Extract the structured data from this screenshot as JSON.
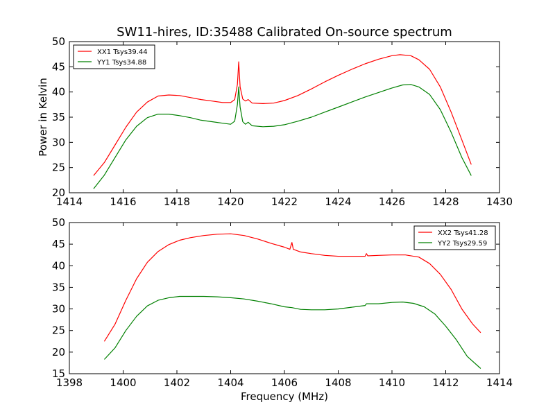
{
  "title": "SW11-hires, ID:35488 Calibrated On-source spectrum",
  "ylabel": "Power in Kelvin",
  "xlabel": "Frequency (MHz)",
  "colors": {
    "red": "#ff0000",
    "green": "#008000",
    "axis": "#000000",
    "background": "#ffffff"
  },
  "chart_data": [
    {
      "type": "line",
      "xlim": [
        1414,
        1430
      ],
      "ylim": [
        20,
        50
      ],
      "xticks": [
        1414,
        1416,
        1418,
        1420,
        1422,
        1424,
        1426,
        1428,
        1430
      ],
      "yticks": [
        20,
        25,
        30,
        35,
        40,
        45,
        50
      ],
      "legend_position": "top-left",
      "series": [
        {
          "name": "XX1 Tsys39.44",
          "color": "#ff0000",
          "points": [
            [
              1414.9,
              23.4
            ],
            [
              1415.3,
              26.0
            ],
            [
              1415.7,
              29.5
            ],
            [
              1416.1,
              33.0
            ],
            [
              1416.5,
              36.0
            ],
            [
              1416.9,
              38.0
            ],
            [
              1417.3,
              39.2
            ],
            [
              1417.7,
              39.4
            ],
            [
              1418.1,
              39.3
            ],
            [
              1418.5,
              38.9
            ],
            [
              1418.9,
              38.5
            ],
            [
              1419.3,
              38.2
            ],
            [
              1419.7,
              37.9
            ],
            [
              1420.0,
              37.9
            ],
            [
              1420.15,
              38.5
            ],
            [
              1420.25,
              41.5
            ],
            [
              1420.3,
              46.0
            ],
            [
              1420.35,
              41.0
            ],
            [
              1420.45,
              38.6
            ],
            [
              1420.55,
              38.2
            ],
            [
              1420.65,
              38.5
            ],
            [
              1420.8,
              37.8
            ],
            [
              1421.2,
              37.7
            ],
            [
              1421.6,
              37.8
            ],
            [
              1422.0,
              38.3
            ],
            [
              1422.5,
              39.3
            ],
            [
              1423.0,
              40.6
            ],
            [
              1423.5,
              42.0
            ],
            [
              1424.0,
              43.3
            ],
            [
              1424.5,
              44.5
            ],
            [
              1425.0,
              45.6
            ],
            [
              1425.5,
              46.5
            ],
            [
              1426.0,
              47.2
            ],
            [
              1426.3,
              47.4
            ],
            [
              1426.7,
              47.2
            ],
            [
              1427.0,
              46.4
            ],
            [
              1427.4,
              44.5
            ],
            [
              1427.8,
              41.0
            ],
            [
              1428.2,
              36.0
            ],
            [
              1428.6,
              30.5
            ],
            [
              1428.95,
              25.6
            ]
          ]
        },
        {
          "name": "YY1 Tsys34.88",
          "color": "#008000",
          "points": [
            [
              1414.9,
              20.8
            ],
            [
              1415.3,
              23.5
            ],
            [
              1415.7,
              27.0
            ],
            [
              1416.1,
              30.5
            ],
            [
              1416.5,
              33.2
            ],
            [
              1416.9,
              34.9
            ],
            [
              1417.3,
              35.6
            ],
            [
              1417.7,
              35.6
            ],
            [
              1418.1,
              35.3
            ],
            [
              1418.5,
              34.9
            ],
            [
              1418.9,
              34.4
            ],
            [
              1419.3,
              34.1
            ],
            [
              1419.7,
              33.8
            ],
            [
              1420.0,
              33.6
            ],
            [
              1420.15,
              34.2
            ],
            [
              1420.25,
              37.5
            ],
            [
              1420.3,
              41.0
            ],
            [
              1420.35,
              37.0
            ],
            [
              1420.45,
              34.1
            ],
            [
              1420.55,
              33.6
            ],
            [
              1420.65,
              34.0
            ],
            [
              1420.8,
              33.3
            ],
            [
              1421.2,
              33.1
            ],
            [
              1421.6,
              33.2
            ],
            [
              1422.0,
              33.5
            ],
            [
              1422.5,
              34.2
            ],
            [
              1423.0,
              35.0
            ],
            [
              1423.5,
              36.0
            ],
            [
              1424.0,
              37.0
            ],
            [
              1424.5,
              38.0
            ],
            [
              1425.0,
              39.0
            ],
            [
              1425.5,
              39.9
            ],
            [
              1426.0,
              40.8
            ],
            [
              1426.4,
              41.4
            ],
            [
              1426.7,
              41.5
            ],
            [
              1427.0,
              41.0
            ],
            [
              1427.4,
              39.5
            ],
            [
              1427.8,
              36.5
            ],
            [
              1428.2,
              32.0
            ],
            [
              1428.6,
              27.0
            ],
            [
              1428.95,
              23.4
            ]
          ]
        }
      ]
    },
    {
      "type": "line",
      "xlim": [
        1398,
        1414
      ],
      "ylim": [
        15,
        50
      ],
      "xticks": [
        1398,
        1400,
        1402,
        1404,
        1406,
        1408,
        1410,
        1412,
        1414
      ],
      "yticks": [
        15,
        20,
        25,
        30,
        35,
        40,
        45,
        50
      ],
      "legend_position": "top-right",
      "series": [
        {
          "name": "XX2 Tsys41.28",
          "color": "#ff0000",
          "points": [
            [
              1399.3,
              22.5
            ],
            [
              1399.7,
              26.5
            ],
            [
              1400.1,
              32.0
            ],
            [
              1400.5,
              37.0
            ],
            [
              1400.9,
              40.8
            ],
            [
              1401.3,
              43.3
            ],
            [
              1401.7,
              44.9
            ],
            [
              1402.1,
              45.9
            ],
            [
              1402.5,
              46.5
            ],
            [
              1403.0,
              47.0
            ],
            [
              1403.5,
              47.3
            ],
            [
              1404.0,
              47.4
            ],
            [
              1404.5,
              47.0
            ],
            [
              1405.0,
              46.2
            ],
            [
              1405.5,
              45.2
            ],
            [
              1406.0,
              44.3
            ],
            [
              1406.2,
              43.8
            ],
            [
              1406.28,
              45.4
            ],
            [
              1406.33,
              43.8
            ],
            [
              1406.6,
              43.2
            ],
            [
              1407.0,
              42.8
            ],
            [
              1407.5,
              42.4
            ],
            [
              1408.0,
              42.2
            ],
            [
              1408.5,
              42.2
            ],
            [
              1409.0,
              42.2
            ],
            [
              1409.05,
              42.8
            ],
            [
              1409.1,
              42.3
            ],
            [
              1409.5,
              42.4
            ],
            [
              1410.0,
              42.5
            ],
            [
              1410.5,
              42.5
            ],
            [
              1411.0,
              42.0
            ],
            [
              1411.4,
              40.5
            ],
            [
              1411.8,
              38.0
            ],
            [
              1412.2,
              34.5
            ],
            [
              1412.6,
              30.0
            ],
            [
              1413.0,
              26.5
            ],
            [
              1413.3,
              24.5
            ]
          ]
        },
        {
          "name": "YY2 Tsys29.59",
          "color": "#008000",
          "points": [
            [
              1399.3,
              18.3
            ],
            [
              1399.7,
              21.0
            ],
            [
              1400.1,
              25.0
            ],
            [
              1400.5,
              28.3
            ],
            [
              1400.9,
              30.7
            ],
            [
              1401.3,
              32.0
            ],
            [
              1401.7,
              32.6
            ],
            [
              1402.1,
              32.9
            ],
            [
              1402.5,
              32.9
            ],
            [
              1403.0,
              32.9
            ],
            [
              1403.5,
              32.8
            ],
            [
              1404.0,
              32.6
            ],
            [
              1404.5,
              32.3
            ],
            [
              1405.0,
              31.8
            ],
            [
              1405.5,
              31.2
            ],
            [
              1406.0,
              30.5
            ],
            [
              1406.28,
              30.3
            ],
            [
              1406.6,
              29.9
            ],
            [
              1407.0,
              29.8
            ],
            [
              1407.5,
              29.8
            ],
            [
              1408.0,
              30.0
            ],
            [
              1408.5,
              30.4
            ],
            [
              1409.0,
              30.8
            ],
            [
              1409.05,
              31.2
            ],
            [
              1409.5,
              31.2
            ],
            [
              1410.0,
              31.5
            ],
            [
              1410.4,
              31.6
            ],
            [
              1410.8,
              31.3
            ],
            [
              1411.2,
              30.5
            ],
            [
              1411.6,
              28.8
            ],
            [
              1412.0,
              26.0
            ],
            [
              1412.4,
              22.8
            ],
            [
              1412.8,
              19.0
            ],
            [
              1413.3,
              16.2
            ]
          ]
        }
      ]
    }
  ]
}
